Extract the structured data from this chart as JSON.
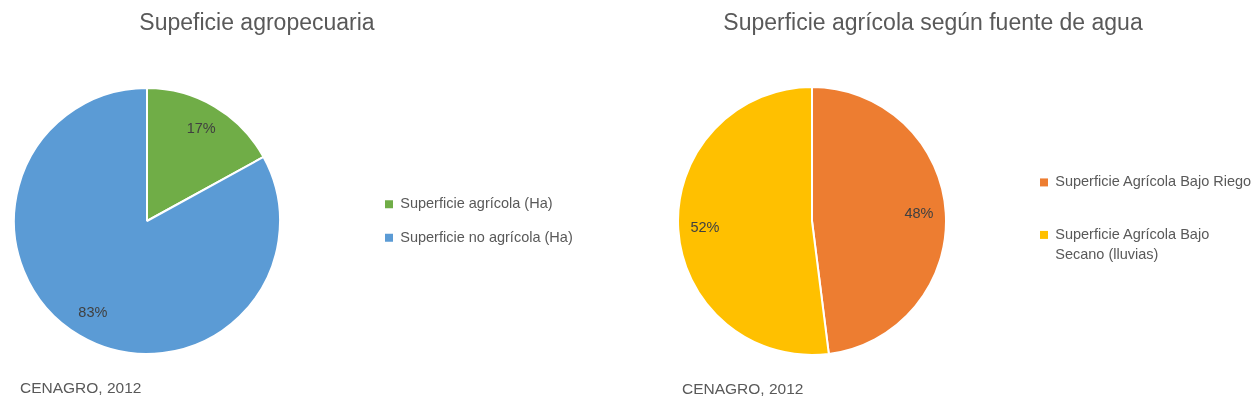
{
  "chart_data": [
    {
      "type": "pie",
      "title": "Supeficie agropecuaria",
      "categories": [
        "Superficie agrícola (Ha)",
        "Superficie no agrícola (Ha)"
      ],
      "values": [
        17,
        83
      ],
      "colors": [
        "#70ad47",
        "#5b9bd5"
      ],
      "value_labels": [
        "17%",
        "83%"
      ],
      "legend": "right",
      "annotations": [
        "CENAGRO, 2012"
      ]
    },
    {
      "type": "pie",
      "title": "Superficie agrícola según fuente de agua",
      "categories": [
        "Superficie Agrícola Bajo Riego",
        "Superficie Agrícola Bajo Secano (lluvias)"
      ],
      "values": [
        48,
        52
      ],
      "colors": [
        "#ed7d31",
        "#ffc000"
      ],
      "value_labels": [
        "48%",
        "52%"
      ],
      "legend": "right",
      "annotations": [
        "CENAGRO, 2012"
      ]
    }
  ]
}
